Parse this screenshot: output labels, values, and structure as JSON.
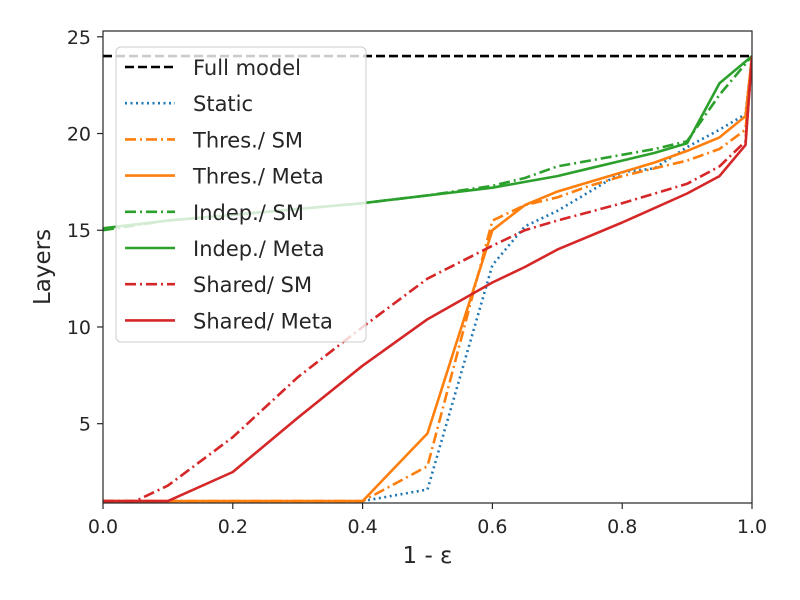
{
  "chart_data": {
    "type": "line",
    "title": "",
    "xlabel": "1 - ε",
    "ylabel": "Layers",
    "xlim": [
      0.0,
      1.0
    ],
    "ylim": [
      0.9,
      25.3
    ],
    "xticks": [
      0.0,
      0.2,
      0.4,
      0.6,
      0.8,
      1.0
    ],
    "xtick_labels": [
      "0.0",
      "0.2",
      "0.4",
      "0.6",
      "0.8",
      "1.0"
    ],
    "yticks": [
      5,
      10,
      15,
      20,
      25
    ],
    "ytick_labels": [
      "5",
      "10",
      "15",
      "20",
      "25"
    ],
    "grid": false,
    "legend_position": "upper-left",
    "series": [
      {
        "name": "Full model",
        "color": "#000000",
        "dash": "dashed",
        "x": [
          0.0,
          1.0
        ],
        "y": [
          24,
          24
        ]
      },
      {
        "name": "Static",
        "color": "#1f77b4",
        "dash": "dotted",
        "x": [
          0.4,
          0.5,
          0.6,
          0.65,
          0.7,
          0.75,
          0.8,
          0.85,
          0.9,
          0.95,
          0.99,
          1.0
        ],
        "y": [
          1,
          1.6,
          13.2,
          15.2,
          16.0,
          17.0,
          18.0,
          18.2,
          19.3,
          20.2,
          21.0,
          24.0
        ]
      },
      {
        "name": "Thres./ SM",
        "color": "#ff7f0e",
        "dash": "dashdot",
        "x": [
          0.0,
          0.1,
          0.2,
          0.3,
          0.4,
          0.5,
          0.6,
          0.65,
          0.7,
          0.75,
          0.8,
          0.85,
          0.9,
          0.95,
          0.99,
          1.0
        ],
        "y": [
          1,
          1,
          1,
          1,
          1,
          2.8,
          15.5,
          16.3,
          16.7,
          17.3,
          17.8,
          18.2,
          18.6,
          19.2,
          20.2,
          24.0
        ]
      },
      {
        "name": "Thres./ Meta",
        "color": "#ff7f0e",
        "dash": "solid",
        "x": [
          0.0,
          0.1,
          0.2,
          0.3,
          0.4,
          0.5,
          0.6,
          0.65,
          0.7,
          0.75,
          0.8,
          0.85,
          0.9,
          0.95,
          0.99,
          1.0
        ],
        "y": [
          1,
          1,
          1,
          1,
          1,
          4.5,
          15.0,
          16.3,
          17.0,
          17.5,
          18.0,
          18.5,
          19.1,
          19.8,
          20.9,
          24.0
        ]
      },
      {
        "name": "Indep./ SM",
        "color": "#2ca02c",
        "dash": "dashdot",
        "x": [
          0.0,
          0.1,
          0.2,
          0.3,
          0.4,
          0.5,
          0.6,
          0.65,
          0.7,
          0.75,
          0.8,
          0.85,
          0.9,
          0.95,
          1.0
        ],
        "y": [
          15.0,
          15.5,
          15.8,
          16.1,
          16.4,
          16.8,
          17.3,
          17.7,
          18.3,
          18.6,
          18.9,
          19.2,
          19.6,
          22.0,
          24.0
        ]
      },
      {
        "name": "Indep./ Meta",
        "color": "#2ca02c",
        "dash": "solid",
        "x": [
          0.0,
          0.1,
          0.2,
          0.3,
          0.4,
          0.5,
          0.6,
          0.65,
          0.7,
          0.75,
          0.8,
          0.85,
          0.9,
          0.95,
          1.0
        ],
        "y": [
          15.1,
          15.5,
          15.8,
          16.1,
          16.4,
          16.8,
          17.2,
          17.5,
          17.8,
          18.2,
          18.6,
          19.0,
          19.5,
          22.6,
          24.0
        ]
      },
      {
        "name": "Shared/ SM",
        "color": "#d62728",
        "dash": "dashdot",
        "x": [
          0.0,
          0.05,
          0.1,
          0.2,
          0.3,
          0.4,
          0.5,
          0.6,
          0.65,
          0.7,
          0.8,
          0.9,
          0.95,
          0.99,
          1.0
        ],
        "y": [
          1,
          1,
          1.8,
          4.3,
          7.4,
          10.0,
          12.5,
          14.2,
          15.0,
          15.5,
          16.4,
          17.4,
          18.3,
          19.6,
          24.0
        ]
      },
      {
        "name": "Shared/ Meta",
        "color": "#d62728",
        "dash": "solid",
        "x": [
          0.0,
          0.1,
          0.2,
          0.3,
          0.4,
          0.5,
          0.6,
          0.65,
          0.7,
          0.8,
          0.9,
          0.95,
          0.99,
          1.0
        ],
        "y": [
          1,
          1,
          2.5,
          5.3,
          8.0,
          10.4,
          12.3,
          13.1,
          14.0,
          15.4,
          16.9,
          17.8,
          19.4,
          24.0
        ]
      }
    ]
  }
}
